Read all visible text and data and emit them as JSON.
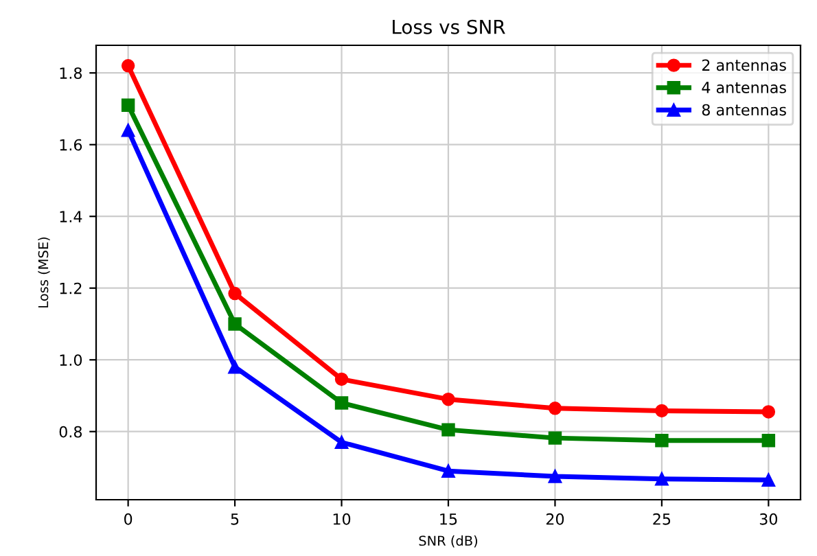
{
  "chart_data": {
    "type": "line",
    "title": "Loss vs SNR",
    "xlabel": "SNR (dB)",
    "ylabel": "Loss (MSE)",
    "x": [
      0,
      5,
      10,
      15,
      20,
      25,
      30
    ],
    "series": [
      {
        "name": "2 antennas",
        "color": "#ff0000",
        "marker": "circle",
        "values": [
          1.82,
          1.185,
          0.946,
          0.89,
          0.865,
          0.858,
          0.855
        ]
      },
      {
        "name": "4 antennas",
        "color": "#008000",
        "marker": "square",
        "values": [
          1.71,
          1.1,
          0.88,
          0.805,
          0.782,
          0.775,
          0.775
        ]
      },
      {
        "name": "8 antennas",
        "color": "#0000ff",
        "marker": "triangle",
        "values": [
          1.64,
          0.98,
          0.77,
          0.69,
          0.675,
          0.668,
          0.665
        ]
      }
    ],
    "xlim": [
      -1.5,
      31.5
    ],
    "xticks": [
      0,
      5,
      10,
      15,
      20,
      25,
      30
    ],
    "ylim": [
      0.61,
      1.877
    ],
    "yticks": [
      0.8,
      {
        "value": 1.0,
        "label": "1.0"
      },
      1.2,
      1.4,
      1.6,
      1.8
    ],
    "grid": true,
    "legend": "top right",
    "line_style": "solid"
  }
}
